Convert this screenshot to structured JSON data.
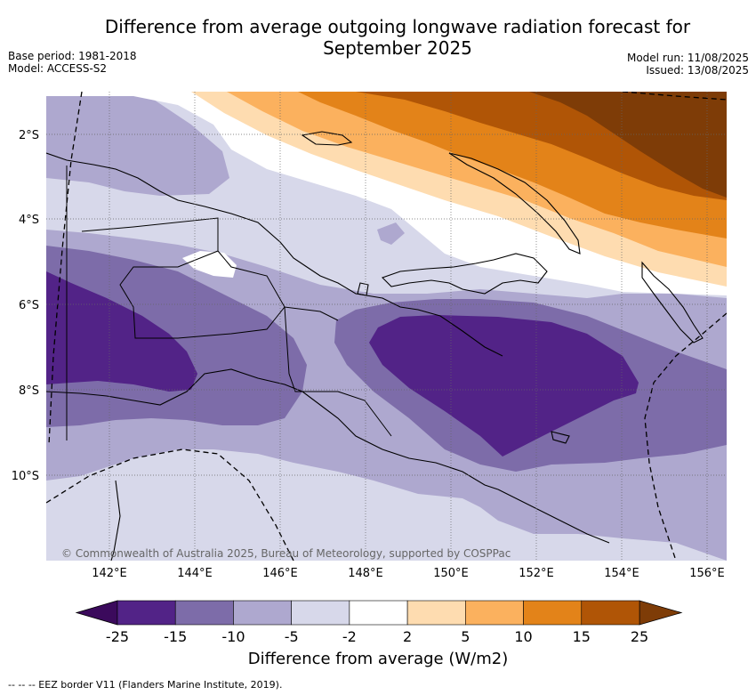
{
  "title_line1": "Difference from average outgoing longwave radiation forecast for",
  "title_line2": "September 2025",
  "meta_left": {
    "base_period": "Base period: 1981-2018",
    "model": "Model: ACCESS-S2"
  },
  "meta_right": {
    "model_run": "Model run: 11/08/2025",
    "issued": "Issued: 13/08/2025"
  },
  "lat_labels": [
    "2°S",
    "4°S",
    "6°S",
    "8°S",
    "10°S"
  ],
  "lon_labels": [
    "142°E",
    "144°E",
    "146°E",
    "148°E",
    "150°E",
    "152°E",
    "154°E",
    "156°E"
  ],
  "copyright": "© Commonwealth of Australia 2025, Bureau of Meteorology, supported by COSPPac",
  "colorbar": {
    "ticks": [
      "-25",
      "-15",
      "-10",
      "-5",
      "-2",
      "2",
      "5",
      "10",
      "15",
      "25"
    ],
    "colors": [
      "#522387",
      "#7d6ca9",
      "#aea8cf",
      "#d7d8ea",
      "#ffffff",
      "#fedcb0",
      "#fbb15e",
      "#e38319",
      "#b05506"
    ],
    "under_color": "#3b0a5c",
    "over_color": "#7e3c07",
    "label": "Difference from average (W/m2)"
  },
  "footnote": "--  --  -- EEZ border V11 (Flanders Marine Institute, 2019)."
}
